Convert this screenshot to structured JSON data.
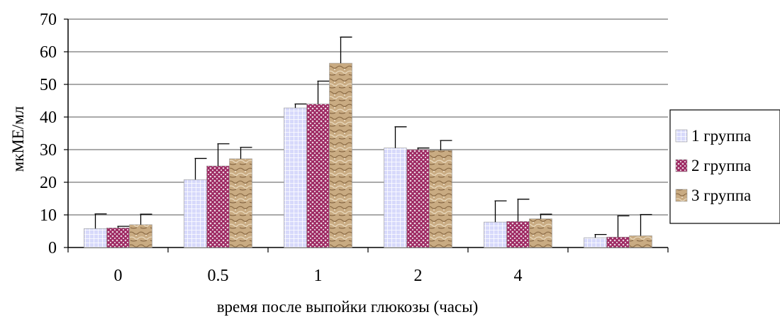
{
  "chart_data": {
    "type": "bar",
    "title": "",
    "xlabel": "время после выпойки глюкозы (часы)",
    "ylabel": "мкМЕ/мл",
    "ylim": [
      0,
      70
    ],
    "yticks": [
      0,
      10,
      20,
      30,
      40,
      50,
      60,
      70
    ],
    "categories": [
      "0",
      "0.5",
      "1",
      "2",
      "4",
      ""
    ],
    "grid": true,
    "legend_position": "right",
    "series": [
      {
        "name": "1 группа",
        "values": [
          5.8,
          20.8,
          42.8,
          30.5,
          7.8,
          3.0
        ],
        "errors": [
          4.5,
          6.5,
          1.2,
          6.5,
          6.5,
          1.0
        ],
        "color": "#c9ccf5",
        "pattern": "light-grid"
      },
      {
        "name": "2 группа",
        "values": [
          6.0,
          25.0,
          44.0,
          30.0,
          8.0,
          3.2
        ],
        "errors": [
          0.5,
          6.8,
          7.0,
          0.5,
          6.8,
          6.5
        ],
        "color": "#a8306a",
        "pattern": "crosshatch"
      },
      {
        "name": "3 группа",
        "values": [
          7.0,
          27.2,
          56.5,
          29.8,
          8.8,
          3.6
        ],
        "errors": [
          3.2,
          3.5,
          8.0,
          3.0,
          1.4,
          6.5
        ],
        "color": "#c4a47a",
        "pattern": "texture"
      }
    ]
  }
}
